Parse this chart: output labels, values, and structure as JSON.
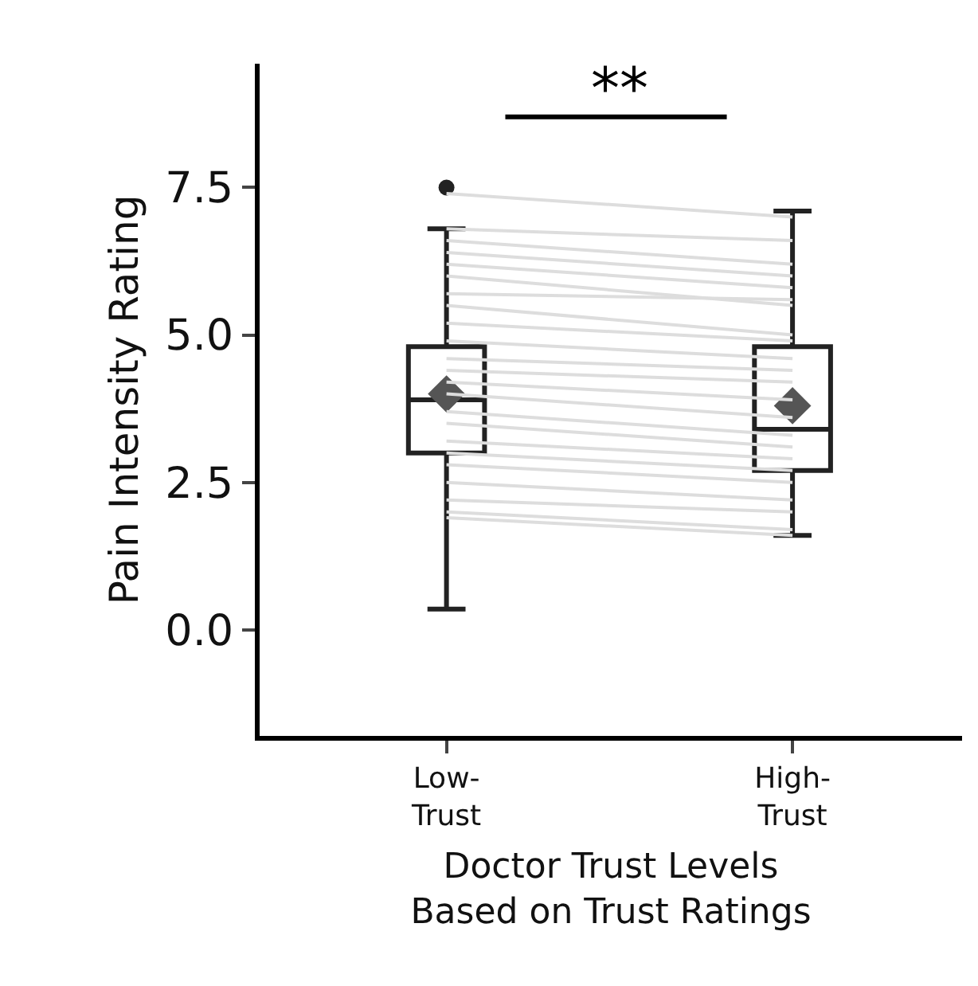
{
  "chart_data": {
    "type": "box",
    "ylabel": "Pain Intensity Rating",
    "xlabel": "Doctor Trust Levels\nBased on Trust Ratings",
    "categories": [
      "Low-\nTrust",
      "High-\nTrust"
    ],
    "ylim": [
      -1.8,
      9.6
    ],
    "yticks": [
      {
        "value": 0,
        "label": "0.0"
      },
      {
        "value": 2.5,
        "label": "2.5"
      },
      {
        "value": 5,
        "label": "5.0"
      },
      {
        "value": 7.5,
        "label": "7.5"
      }
    ],
    "annotations": [
      "**"
    ],
    "boxes": [
      {
        "low": 0.35,
        "q1": 3.0,
        "median": 3.9,
        "q3": 4.8,
        "high": 6.8,
        "mean": 4.0,
        "outliers": [
          7.5
        ]
      },
      {
        "low": 1.6,
        "q1": 2.7,
        "median": 3.4,
        "q3": 4.8,
        "high": 7.1,
        "mean": 3.8
      }
    ],
    "series": [
      {
        "type": "line",
        "color": "#dddddd",
        "values": [
          7.4,
          7.0
        ]
      },
      {
        "type": "line",
        "color": "#dddddd",
        "values": [
          6.8,
          6.6
        ]
      },
      {
        "type": "line",
        "color": "#dddddd",
        "values": [
          6.6,
          6.2
        ]
      },
      {
        "type": "line",
        "color": "#dddddd",
        "values": [
          6.4,
          6.0
        ]
      },
      {
        "type": "line",
        "color": "#dddddd",
        "values": [
          6.2,
          5.8
        ]
      },
      {
        "type": "line",
        "color": "#dddddd",
        "values": [
          6.0,
          5.5
        ]
      },
      {
        "type": "line",
        "color": "#dddddd",
        "values": [
          5.7,
          5.6
        ]
      },
      {
        "type": "line",
        "color": "#dddddd",
        "values": [
          5.5,
          5.0
        ]
      },
      {
        "type": "line",
        "color": "#dddddd",
        "values": [
          5.2,
          4.9
        ]
      },
      {
        "type": "line",
        "color": "#dddddd",
        "values": [
          4.9,
          4.6
        ]
      },
      {
        "type": "line",
        "color": "#dddddd",
        "values": [
          4.6,
          4.4
        ]
      },
      {
        "type": "line",
        "color": "#dddddd",
        "values": [
          4.4,
          4.2
        ]
      },
      {
        "type": "line",
        "color": "#dddddd",
        "values": [
          4.2,
          3.9
        ]
      },
      {
        "type": "line",
        "color": "#dddddd",
        "values": [
          4.0,
          3.6
        ]
      },
      {
        "type": "line",
        "color": "#dddddd",
        "values": [
          3.7,
          3.3
        ]
      },
      {
        "type": "line",
        "color": "#dddddd",
        "values": [
          3.5,
          3.1
        ]
      },
      {
        "type": "line",
        "color": "#dddddd",
        "values": [
          3.2,
          2.9
        ]
      },
      {
        "type": "line",
        "color": "#dddddd",
        "values": [
          3.0,
          2.7
        ]
      },
      {
        "type": "line",
        "color": "#dddddd",
        "values": [
          2.8,
          2.5
        ]
      },
      {
        "type": "line",
        "color": "#dddddd",
        "values": [
          2.5,
          2.2
        ]
      },
      {
        "type": "line",
        "color": "#dddddd",
        "values": [
          2.2,
          2.0
        ]
      },
      {
        "type": "line",
        "color": "#dddddd",
        "values": [
          2.0,
          1.7
        ]
      },
      {
        "type": "line",
        "color": "#dddddd",
        "values": [
          1.9,
          1.6
        ]
      }
    ]
  }
}
